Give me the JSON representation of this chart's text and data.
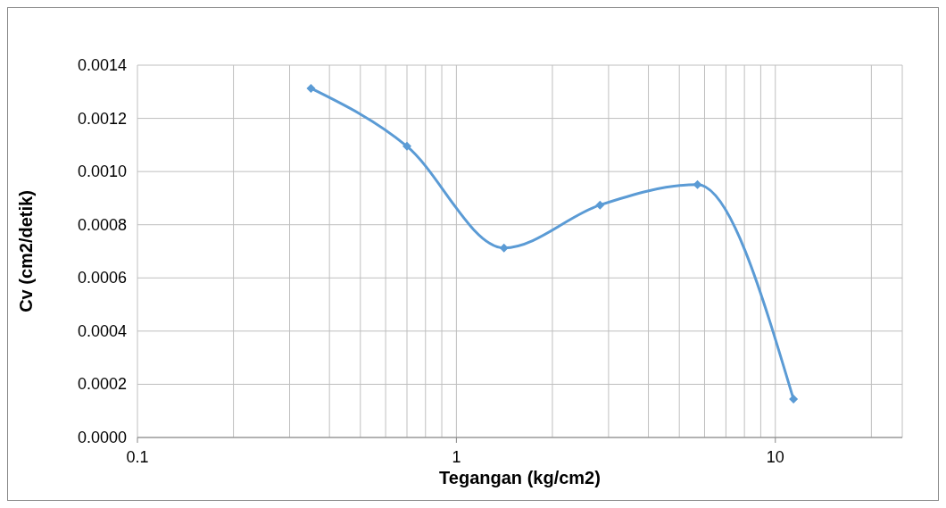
{
  "chart_data": {
    "type": "line",
    "xlabel": "Tegangan (kg/cm2)",
    "ylabel": "Cv (cm2/detik)",
    "x": [
      0.35,
      0.7,
      1.41,
      2.82,
      5.7,
      11.4
    ],
    "series": [
      {
        "color": "#5b9bd5",
        "values": [
          0.001313,
          0.001095,
          0.000713,
          0.000874,
          0.000951,
          0.000144
        ]
      }
    ],
    "log": "x",
    "xlim": [
      0.1,
      25
    ],
    "xticks": [
      0.1,
      {
        "value": 0.2,
        "label": null
      },
      {
        "value": 0.3,
        "label": null
      },
      {
        "value": 0.4,
        "label": null
      },
      {
        "value": 0.5,
        "label": null
      },
      {
        "value": 0.6,
        "label": null
      },
      {
        "value": 0.7,
        "label": null
      },
      {
        "value": 0.8,
        "label": null
      },
      {
        "value": 0.9,
        "label": null
      },
      1,
      {
        "value": 2,
        "label": null
      },
      {
        "value": 3,
        "label": null
      },
      {
        "value": 4,
        "label": null
      },
      {
        "value": 5,
        "label": null
      },
      {
        "value": 6,
        "label": null
      },
      {
        "value": 7,
        "label": null
      },
      {
        "value": 8,
        "label": null
      },
      {
        "value": 9,
        "label": null
      },
      10,
      {
        "value": 20,
        "label": null
      }
    ],
    "ylim": [
      0,
      0.0014
    ],
    "yticks": [
      {
        "value": 0,
        "label": "0.0000"
      },
      {
        "value": 0.0002,
        "label": "0.0002"
      },
      {
        "value": 0.0004,
        "label": "0.0004"
      },
      {
        "value": 0.0006,
        "label": "0.0006"
      },
      {
        "value": 0.0008,
        "label": "0.0008"
      },
      {
        "value": 0.001,
        "label": "0.0010"
      },
      {
        "value": 0.0012,
        "label": "0.0012"
      },
      {
        "value": 0.0014,
        "label": "0.0014"
      }
    ],
    "grid": true,
    "marker": "diamond",
    "line_style": "solid",
    "legend": false
  }
}
